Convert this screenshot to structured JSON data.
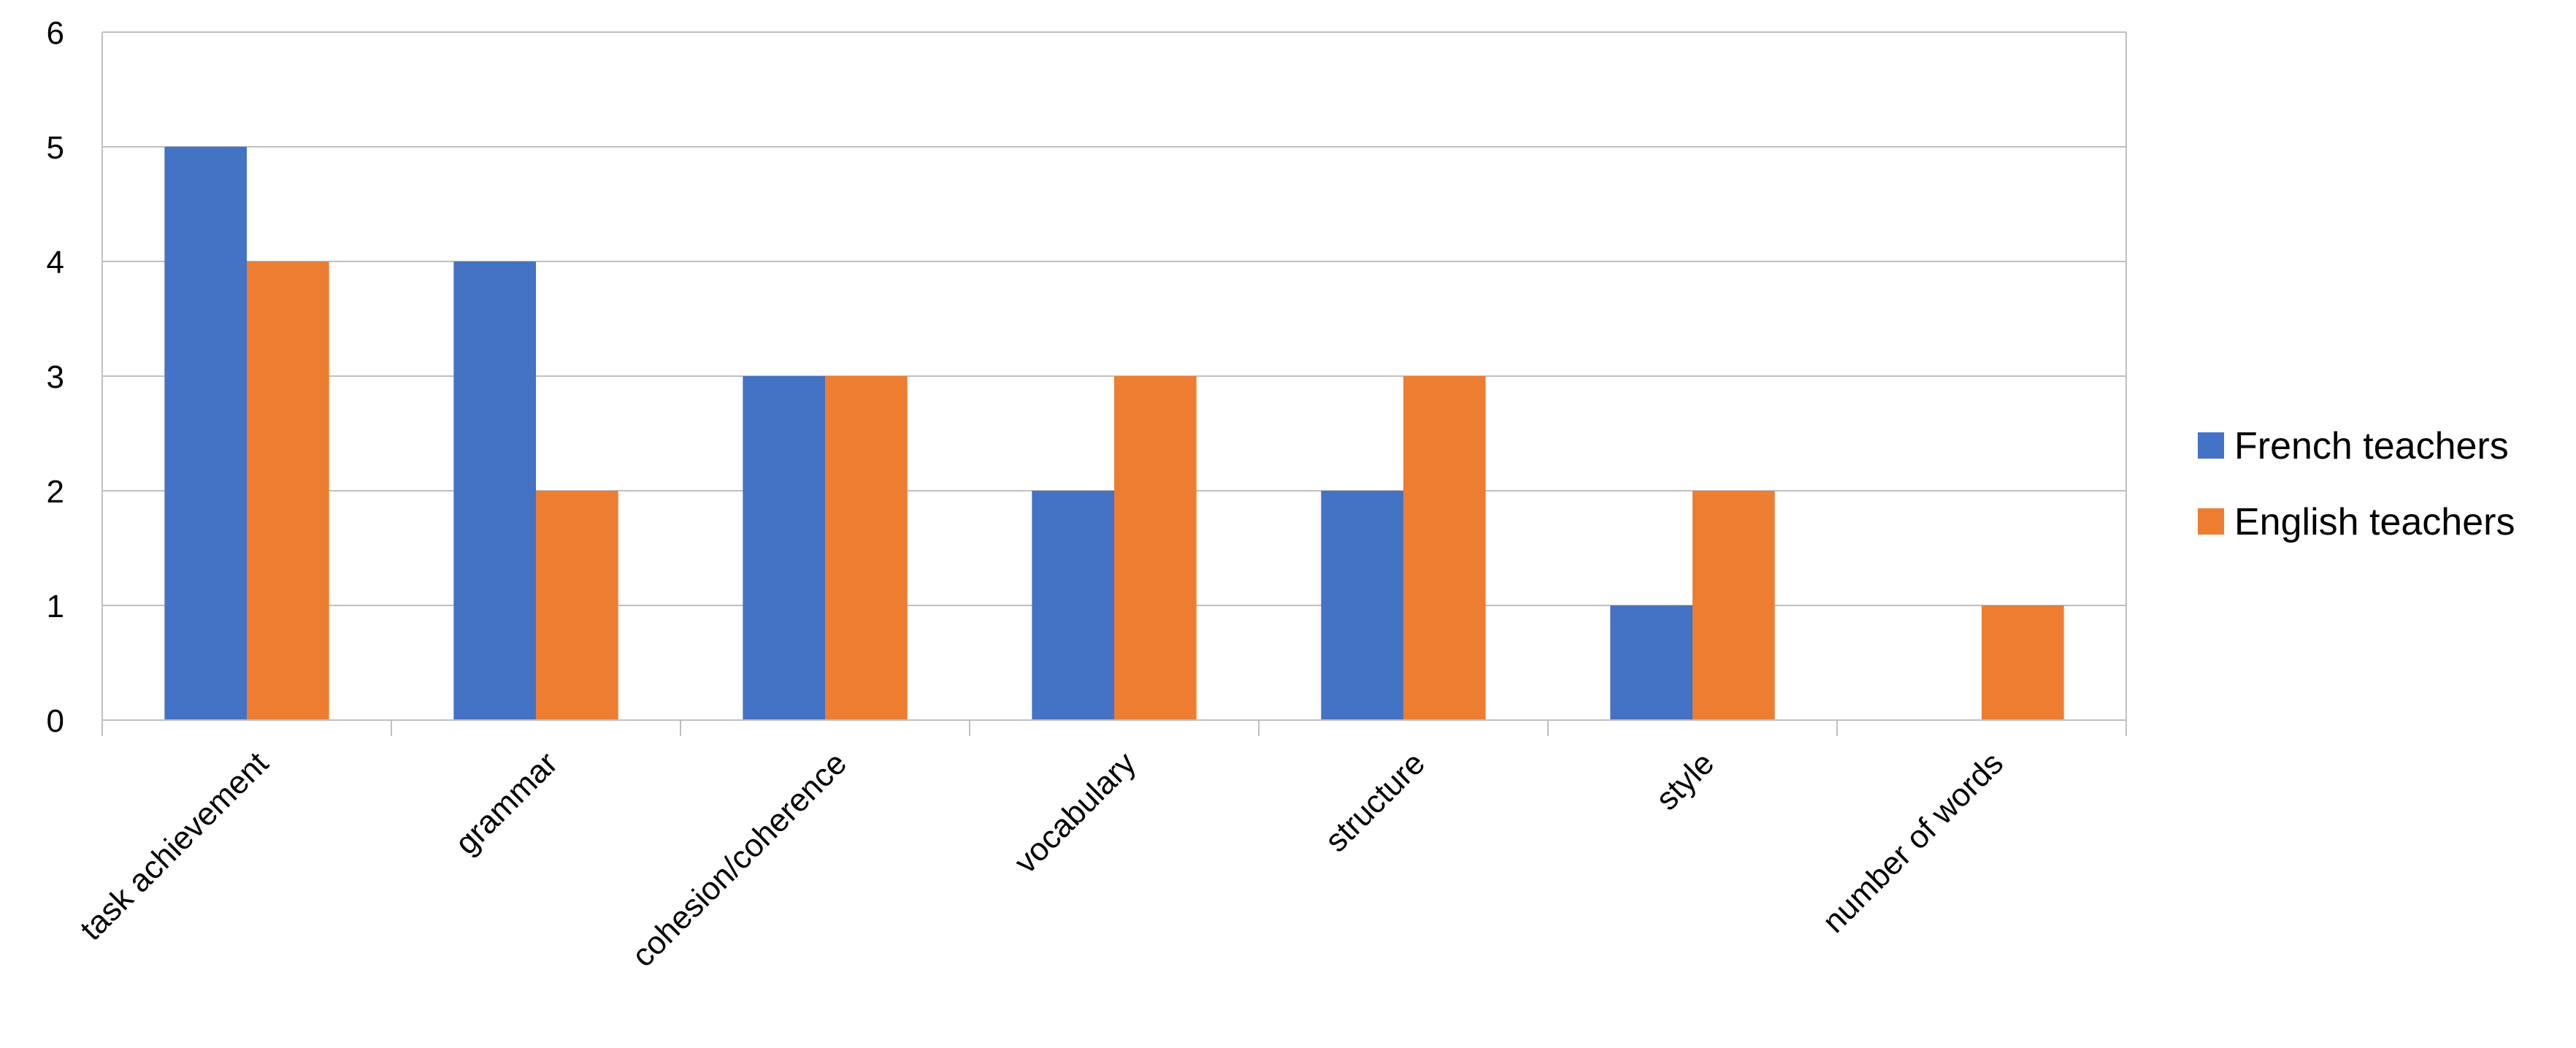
{
  "chart_data": {
    "type": "bar",
    "categories": [
      "task achievement",
      "grammar",
      "cohesion/coherence",
      "vocabulary",
      "structure",
      "style",
      "number of words"
    ],
    "series": [
      {
        "name": "French teachers",
        "color": "#4472C4",
        "values": [
          5,
          4,
          3,
          2,
          2,
          1,
          0
        ]
      },
      {
        "name": "English teachers",
        "color": "#ED7D31",
        "values": [
          4,
          2,
          3,
          3,
          3,
          2,
          1
        ]
      }
    ],
    "yticks": [
      "0",
      "1",
      "2",
      "3",
      "4",
      "5",
      "6"
    ],
    "ylim": [
      0,
      6
    ],
    "title": "",
    "xlabel": "",
    "ylabel": "",
    "grid": true,
    "legend_position": "right"
  }
}
